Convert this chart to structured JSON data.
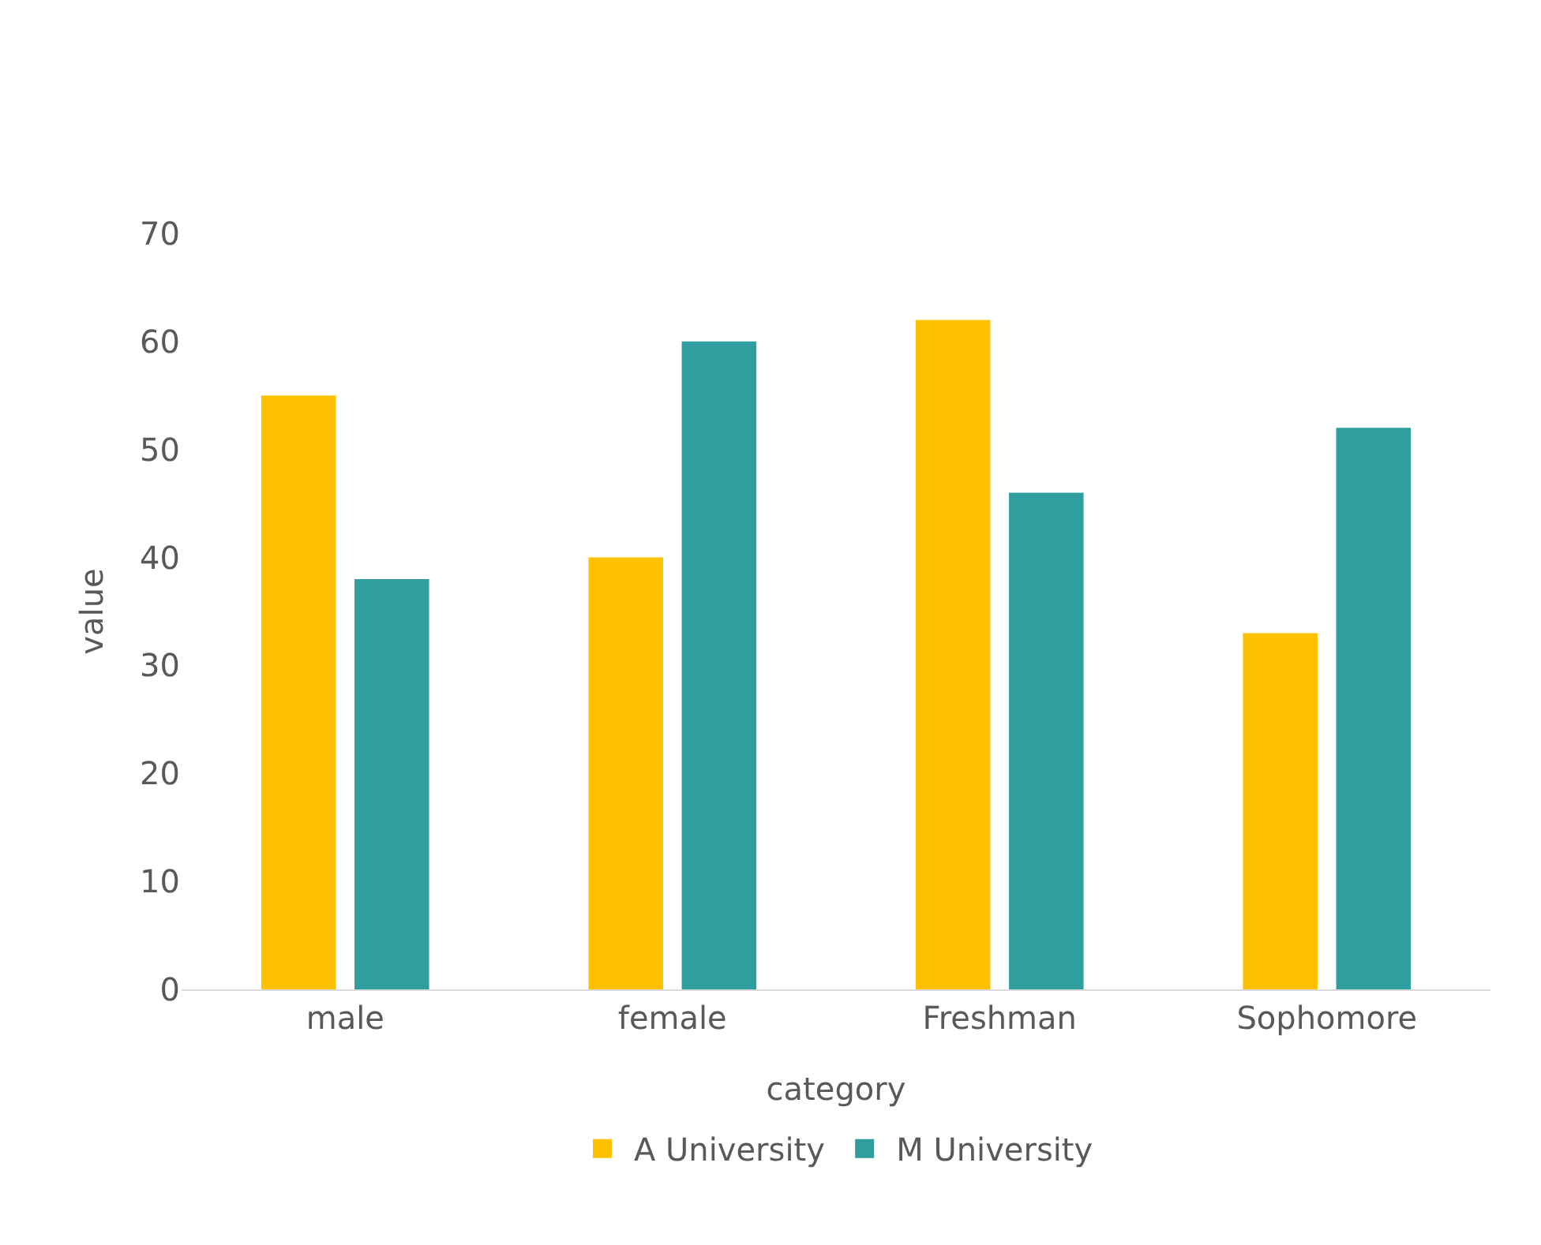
{
  "chart_data": {
    "type": "bar",
    "xlabel": "category",
    "ylabel": "value",
    "categories": [
      "male",
      "female",
      "Freshman",
      "Sophomore"
    ],
    "series": [
      {
        "name": "A University",
        "color": "#ffc000",
        "values": [
          55,
          40,
          62,
          33
        ]
      },
      {
        "name": "M University",
        "color": "#2e9e9e",
        "values": [
          38,
          60,
          46,
          52
        ]
      }
    ],
    "ylim": [
      0,
      70
    ],
    "yticks": [
      0,
      10,
      20,
      30,
      40,
      50,
      60,
      70
    ],
    "grid": false,
    "legend": "bottom"
  }
}
